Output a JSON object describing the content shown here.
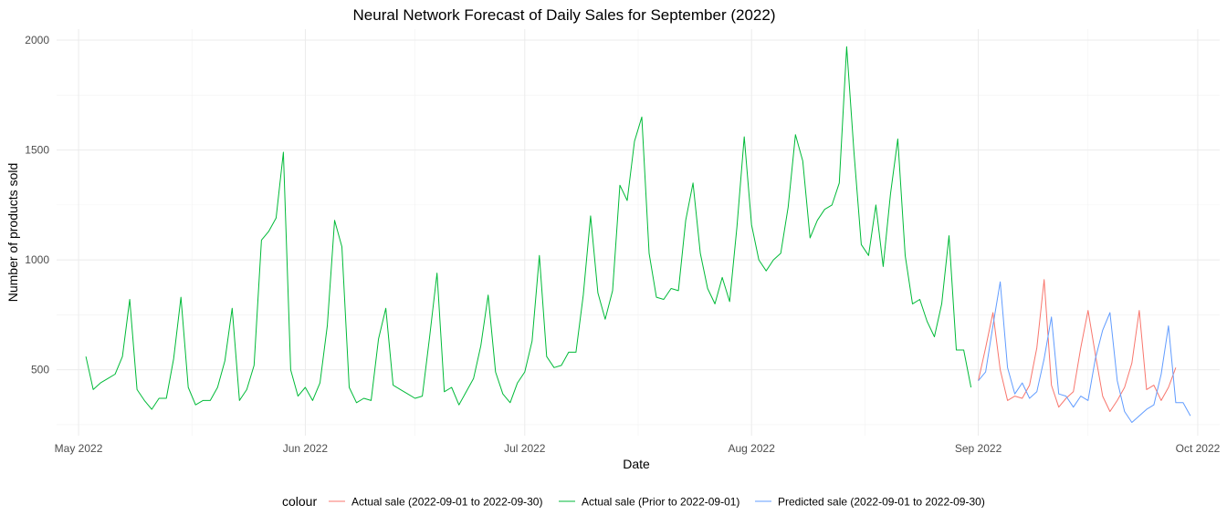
{
  "chart_data": {
    "type": "line",
    "title": "Neural Network Forecast of Daily Sales for September (2022)",
    "xlabel": "Date",
    "ylabel": "Number of products sold",
    "ylim": [
      200,
      2050
    ],
    "xlim": [
      "2022-04-28",
      "2022-10-04"
    ],
    "grid": true,
    "legend_position": "bottom",
    "x_ticks": [
      {
        "date": "2022-05-01",
        "label": "May 2022"
      },
      {
        "date": "2022-06-01",
        "label": "Jun 2022"
      },
      {
        "date": "2022-07-01",
        "label": "Jul 2022"
      },
      {
        "date": "2022-08-01",
        "label": "Aug 2022"
      },
      {
        "date": "2022-09-01",
        "label": "Sep 2022"
      },
      {
        "date": "2022-10-01",
        "label": "Oct 2022"
      }
    ],
    "y_ticks": [
      {
        "value": 500,
        "label": "500"
      },
      {
        "value": 1000,
        "label": "1000"
      },
      {
        "value": 1500,
        "label": "1500"
      },
      {
        "value": 2000,
        "label": "2000"
      }
    ],
    "legend_title": "colour",
    "series": [
      {
        "name": "Actual sale (2022-09-01 to 2022-09-30)",
        "color": "#F8766D",
        "start": "2022-09-01",
        "values": [
          450,
          600,
          760,
          500,
          360,
          380,
          370,
          430,
          600,
          910,
          430,
          330,
          370,
          400,
          600,
          770,
          570,
          380,
          310,
          360,
          420,
          530,
          770,
          410,
          430,
          360,
          420,
          510
        ]
      },
      {
        "name": "Actual sale (Prior to 2022-09-01)",
        "color": "#00BA38",
        "start": "2022-05-02",
        "values": [
          560,
          410,
          440,
          460,
          480,
          560,
          820,
          410,
          360,
          320,
          370,
          370,
          550,
          830,
          420,
          340,
          360,
          360,
          420,
          540,
          780,
          360,
          410,
          520,
          1090,
          1130,
          1190,
          1490,
          500,
          380,
          420,
          360,
          440,
          700,
          1180,
          1060,
          420,
          350,
          370,
          360,
          640,
          780,
          430,
          410,
          390,
          370,
          380,
          650,
          940,
          400,
          420,
          340,
          400,
          460,
          610,
          840,
          490,
          390,
          350,
          440,
          490,
          630,
          1020,
          560,
          510,
          520,
          580,
          580,
          840,
          1200,
          850,
          730,
          860,
          1340,
          1270,
          1540,
          1650,
          1030,
          830,
          820,
          870,
          860,
          1180,
          1350,
          1030,
          870,
          800,
          920,
          810,
          1150,
          1560,
          1160,
          1000,
          950,
          1000,
          1030,
          1240,
          1570,
          1450,
          1100,
          1180,
          1230,
          1250,
          1350,
          1970,
          1490,
          1070,
          1020,
          1250,
          970,
          1300,
          1550,
          1020,
          800,
          820,
          720,
          650,
          800,
          1110,
          590,
          590,
          420
        ]
      },
      {
        "name": "Predicted sale (2022-09-01 to 2022-09-30)",
        "color": "#619CFF",
        "start": "2022-09-01",
        "values": [
          450,
          490,
          700,
          900,
          510,
          390,
          440,
          370,
          400,
          550,
          740,
          390,
          380,
          330,
          380,
          360,
          550,
          680,
          760,
          450,
          310,
          260,
          290,
          320,
          340,
          480,
          700,
          350,
          350,
          290
        ]
      }
    ]
  }
}
